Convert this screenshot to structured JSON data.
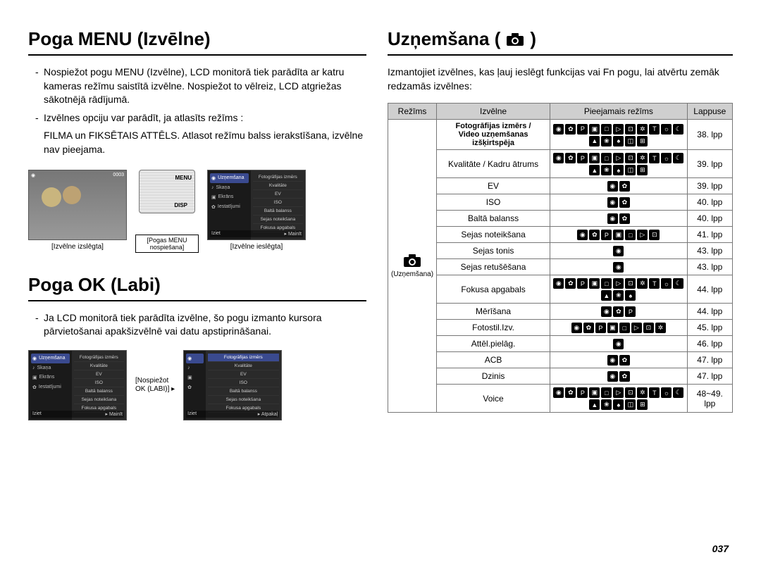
{
  "page_number": "037",
  "left": {
    "section1_title": "Poga MENU (Izvēlne)",
    "para1": "Nospiežot pogu MENU (Izvēlne), LCD monitorā tiek parādīta ar katru kameras režīmu saistītā izvēlne. Nospiežot to vēlreiz, LCD atgriežas sākotnējā rādījumā.",
    "para2_lead": "Izvēlnes opciju var parādīt, ja atlasīts režīms :",
    "para2_cont": "FILMA un FIKSĒTAIS ATTĒLS. Atlasot režīmu balss ierakstīšana, izvēlne nav pieejama.",
    "fig1": {
      "left_caption": "[Izvēlne izslēgta]",
      "mid_label": "[Pogas MENU nospiešana]",
      "right_caption": "[Izvēlne ieslēgta]",
      "menu_side": [
        "Uzņemšana",
        "Skaņa",
        "Ekrāns",
        "Iestatījumi"
      ],
      "menu_list": [
        "Fotogrāfijas izmērs",
        "Kvalitāte",
        "EV",
        "ISO",
        "Baltā balanss",
        "Sejas noteikšana",
        "Fokusa apgabals"
      ],
      "menu_bot_left": "Iziet",
      "menu_bot_right": "Mainīt"
    },
    "section2_title": "Poga OK (Labi)",
    "para3": "Ja LCD monitorā tiek parādīta izvēlne, šo pogu izmanto kursora pārvietošanai apakšizvēlnē vai datu apstiprināšanai.",
    "fig2": {
      "mid_label1": "[Nospiežot",
      "mid_label2": "OK (LABI)]",
      "menu_bot_right2": "Atpakaļ"
    }
  },
  "right": {
    "title": "Uzņemšana (",
    "title_suffix": ")",
    "intro": "Izmantojiet izvēlnes, kas ļauj ieslēgt funkcijas vai Fn pogu, lai atvērtu zemāk redzamās izvēlnes:",
    "headers": {
      "c1": "Režīms",
      "c2": "Izvēlne",
      "c3": "Pieejamais režīms",
      "c4": "Lappuse"
    },
    "mode_label": "(Uzņemšana)",
    "rows": [
      {
        "name_l1": "Fotogrāfijas izmērs /",
        "name_l2": "Video uzņemšanas izšķirtspēja",
        "icons_n": 16,
        "page": "38. lpp"
      },
      {
        "name": "Kvalitāte / Kadru ātrums",
        "icons_n": 16,
        "page": "39. lpp"
      },
      {
        "name": "EV",
        "icons_n": 2,
        "page": "39. lpp"
      },
      {
        "name": "ISO",
        "icons_n": 2,
        "page": "40. lpp"
      },
      {
        "name": "Baltā balanss",
        "icons_n": 2,
        "page": "40. lpp"
      },
      {
        "name": "Sejas noteikšana",
        "icons_n": 7,
        "page": "41. lpp"
      },
      {
        "name": "Sejas tonis",
        "icons_n": 1,
        "page": "43. lpp"
      },
      {
        "name": "Sejas retušēšana",
        "icons_n": 1,
        "page": "43. lpp"
      },
      {
        "name": "Fokusa apgabals",
        "icons_n": 14,
        "page": "44. lpp"
      },
      {
        "name": "Mērīšana",
        "icons_n": 3,
        "page": "44. lpp"
      },
      {
        "name": "Fotostil.Izv.",
        "icons_n": 8,
        "page": "45. lpp"
      },
      {
        "name": "Attēl.pielāg.",
        "icons_n": 1,
        "page": "46. lpp"
      },
      {
        "name": "ACB",
        "icons_n": 2,
        "page": "47. lpp"
      },
      {
        "name": "Dzinis",
        "icons_n": 2,
        "page": "47. lpp"
      },
      {
        "name": "Voice",
        "icons_n": 16,
        "page": "48~49. lpp"
      }
    ],
    "icon_glyphs": [
      "◉",
      "✿",
      "P",
      "▣",
      "□",
      "▷",
      "⊡",
      "✲",
      "T",
      "☼",
      "☾",
      "▲",
      "❀",
      "♠",
      "◫",
      "⊞"
    ]
  },
  "colors": {
    "header_bg": "#cfcfcf",
    "border": "#777777",
    "icon_bg": "#000000",
    "icon_fg": "#ffffff",
    "menu_sel": "#3a4a8f"
  }
}
